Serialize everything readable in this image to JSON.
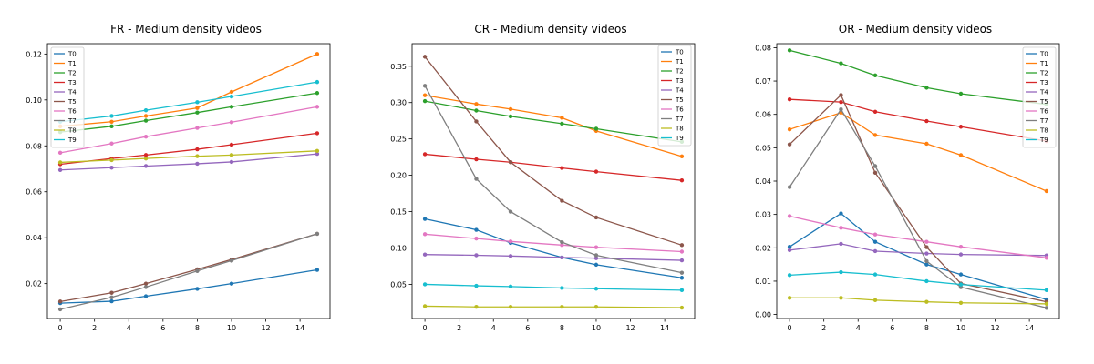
{
  "chart_data": [
    {
      "type": "line",
      "title": "FR - Medium density videos",
      "xlabel": "",
      "ylabel": "",
      "x": [
        0,
        3,
        5,
        8,
        10,
        15
      ],
      "xlim": [
        -0.75,
        15.75
      ],
      "ylim": [
        0.0048,
        0.1245
      ],
      "xticks": [
        0,
        2,
        4,
        6,
        8,
        10,
        12,
        14
      ],
      "yticks": [
        0.02,
        0.04,
        0.06,
        0.08,
        0.1,
        0.12
      ],
      "ytick_labels": [
        "0.02",
        "0.04",
        "0.06",
        "0.08",
        "0.10",
        "0.12"
      ],
      "grid": false,
      "legend_position": "top-left",
      "series": [
        {
          "name": "T0",
          "color": "#1f77b4",
          "values": [
            0.0115,
            0.0123,
            0.0145,
            0.0177,
            0.02,
            0.026
          ]
        },
        {
          "name": "T1",
          "color": "#ff7f0e",
          "values": [
            0.0885,
            0.0905,
            0.093,
            0.0965,
            0.1035,
            0.12
          ]
        },
        {
          "name": "T2",
          "color": "#2ca02c",
          "values": [
            0.086,
            0.0885,
            0.091,
            0.0945,
            0.097,
            0.103
          ]
        },
        {
          "name": "T3",
          "color": "#d62728",
          "values": [
            0.072,
            0.0745,
            0.076,
            0.0785,
            0.0805,
            0.0855
          ]
        },
        {
          "name": "T4",
          "color": "#9467bd",
          "values": [
            0.0695,
            0.0705,
            0.0712,
            0.0722,
            0.073,
            0.0765
          ]
        },
        {
          "name": "T5",
          "color": "#8c564b",
          "values": [
            0.0122,
            0.016,
            0.02,
            0.0262,
            0.0305,
            0.0417
          ]
        },
        {
          "name": "T6",
          "color": "#e377c2",
          "values": [
            0.077,
            0.081,
            0.084,
            0.0878,
            0.0903,
            0.097
          ]
        },
        {
          "name": "T7",
          "color": "#7f7f7f",
          "values": [
            0.0088,
            0.014,
            0.0185,
            0.0255,
            0.03,
            0.0417
          ]
        },
        {
          "name": "T8",
          "color": "#bcbd22",
          "values": [
            0.0728,
            0.0738,
            0.0745,
            0.0755,
            0.076,
            0.0778
          ]
        },
        {
          "name": "T9",
          "color": "#17becf",
          "values": [
            0.0905,
            0.093,
            0.0955,
            0.099,
            0.1015,
            0.1078
          ]
        }
      ]
    },
    {
      "type": "line",
      "title": "CR - Medium density videos",
      "xlabel": "",
      "ylabel": "",
      "x": [
        0,
        3,
        5,
        8,
        10,
        15
      ],
      "xlim": [
        -0.75,
        15.75
      ],
      "ylim": [
        0.003,
        0.381
      ],
      "xticks": [
        0,
        2,
        4,
        6,
        8,
        10,
        12,
        14
      ],
      "yticks": [
        0.05,
        0.1,
        0.15,
        0.2,
        0.25,
        0.3,
        0.35
      ],
      "ytick_labels": [
        "0.05",
        "0.10",
        "0.15",
        "0.20",
        "0.25",
        "0.30",
        "0.35"
      ],
      "grid": false,
      "legend_position": "top-right",
      "series": [
        {
          "name": "T0",
          "color": "#1f77b4",
          "values": [
            0.14,
            0.125,
            0.107,
            0.087,
            0.077,
            0.059
          ]
        },
        {
          "name": "T1",
          "color": "#ff7f0e",
          "values": [
            0.31,
            0.298,
            0.291,
            0.279,
            0.261,
            0.226
          ]
        },
        {
          "name": "T2",
          "color": "#2ca02c",
          "values": [
            0.302,
            0.289,
            0.281,
            0.271,
            0.264,
            0.246
          ]
        },
        {
          "name": "T3",
          "color": "#d62728",
          "values": [
            0.229,
            0.222,
            0.218,
            0.21,
            0.205,
            0.193
          ]
        },
        {
          "name": "T4",
          "color": "#9467bd",
          "values": [
            0.091,
            0.09,
            0.089,
            0.087,
            0.086,
            0.083
          ]
        },
        {
          "name": "T5",
          "color": "#8c564b",
          "values": [
            0.363,
            0.274,
            0.218,
            0.165,
            0.142,
            0.104
          ]
        },
        {
          "name": "T6",
          "color": "#e377c2",
          "values": [
            0.119,
            0.113,
            0.109,
            0.104,
            0.101,
            0.095
          ]
        },
        {
          "name": "T7",
          "color": "#7f7f7f",
          "values": [
            0.323,
            0.195,
            0.15,
            0.108,
            0.09,
            0.066
          ]
        },
        {
          "name": "T8",
          "color": "#bcbd22",
          "values": [
            0.02,
            0.019,
            0.019,
            0.019,
            0.019,
            0.018
          ]
        },
        {
          "name": "T9",
          "color": "#17becf",
          "values": [
            0.05,
            0.048,
            0.047,
            0.045,
            0.044,
            0.042
          ]
        }
      ]
    },
    {
      "type": "line",
      "title": "OR - Medium density videos",
      "xlabel": "",
      "ylabel": "",
      "x": [
        0,
        3,
        5,
        8,
        10,
        15
      ],
      "xlim": [
        -0.75,
        15.75
      ],
      "ylim": [
        -0.0012,
        0.0812
      ],
      "xticks": [
        0,
        2,
        4,
        6,
        8,
        10,
        12,
        14
      ],
      "yticks": [
        0.0,
        0.01,
        0.02,
        0.03,
        0.04,
        0.05,
        0.06,
        0.07,
        0.08
      ],
      "ytick_labels": [
        "0.00",
        "0.01",
        "0.02",
        "0.03",
        "0.04",
        "0.05",
        "0.06",
        "0.07",
        "0.08"
      ],
      "grid": false,
      "legend_position": "top-right",
      "series": [
        {
          "name": "T0",
          "color": "#1f77b4",
          "values": [
            0.0203,
            0.0303,
            0.0218,
            0.015,
            0.012,
            0.0045
          ]
        },
        {
          "name": "T1",
          "color": "#ff7f0e",
          "values": [
            0.0555,
            0.0605,
            0.0538,
            0.0512,
            0.0478,
            0.037
          ]
        },
        {
          "name": "T2",
          "color": "#2ca02c",
          "values": [
            0.0792,
            0.0753,
            0.0717,
            0.068,
            0.0662,
            0.063
          ]
        },
        {
          "name": "T3",
          "color": "#d62728",
          "values": [
            0.0645,
            0.0637,
            0.0608,
            0.058,
            0.0563,
            0.052
          ]
        },
        {
          "name": "T4",
          "color": "#9467bd",
          "values": [
            0.0193,
            0.0212,
            0.019,
            0.0183,
            0.018,
            0.0177
          ]
        },
        {
          "name": "T5",
          "color": "#8c564b",
          "values": [
            0.051,
            0.0658,
            0.0425,
            0.0202,
            0.0093,
            0.0038
          ]
        },
        {
          "name": "T6",
          "color": "#e377c2",
          "values": [
            0.0295,
            0.026,
            0.024,
            0.0218,
            0.0203,
            0.017
          ]
        },
        {
          "name": "T7",
          "color": "#7f7f7f",
          "values": [
            0.0382,
            0.0615,
            0.0445,
            0.016,
            0.0082,
            0.002
          ]
        },
        {
          "name": "T8",
          "color": "#bcbd22",
          "values": [
            0.005,
            0.005,
            0.0043,
            0.0038,
            0.0035,
            0.0032
          ]
        },
        {
          "name": "T9",
          "color": "#17becf",
          "values": [
            0.0118,
            0.0127,
            0.012,
            0.01,
            0.009,
            0.0073
          ]
        }
      ]
    }
  ]
}
